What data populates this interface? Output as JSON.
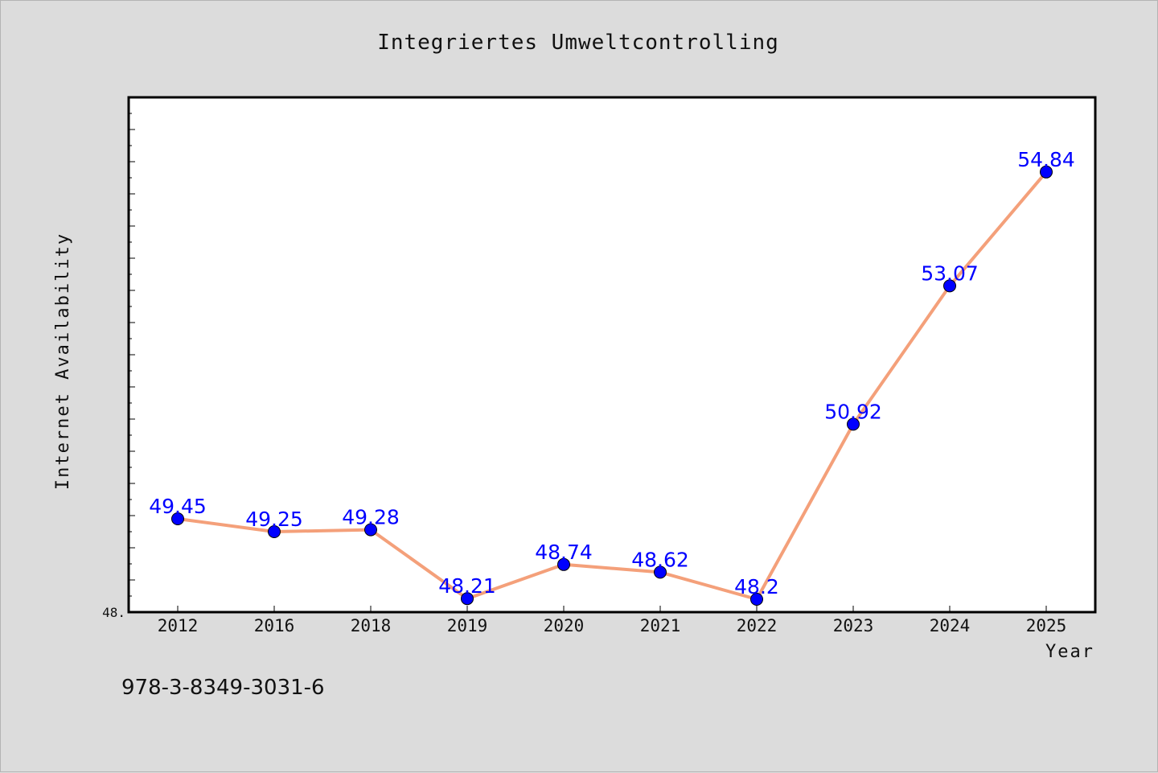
{
  "chart_data": {
    "type": "line",
    "title": "Integriertes Umweltcontrolling",
    "xlabel": "Year",
    "ylabel": "Internet Availability",
    "categories": [
      "2012",
      "2016",
      "2018",
      "2019",
      "2020",
      "2021",
      "2022",
      "2023",
      "2024",
      "2025"
    ],
    "series": [
      {
        "values": [
          49.45,
          49.25,
          49.28,
          48.21,
          48.74,
          48.62,
          48.2,
          50.92,
          53.07,
          54.84
        ]
      }
    ],
    "data_labels": [
      "49.45",
      "49.25",
      "49.28",
      "48.21",
      "48.74",
      "48.62",
      "48.2",
      "50.92",
      "53.07",
      "54.84"
    ],
    "ylim": [
      48.0,
      56.0
    ],
    "y_tick_label": "48.",
    "grid": false,
    "line_color": "#f4a07a",
    "marker_color": "#0000ff",
    "label_color": "#0000ff"
  },
  "footer_text": "978-3-8349-3031-6"
}
